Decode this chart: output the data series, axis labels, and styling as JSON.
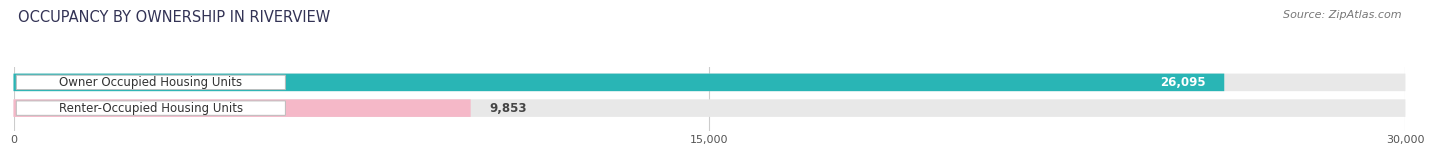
{
  "title": "OCCUPANCY BY OWNERSHIP IN RIVERVIEW",
  "source": "Source: ZipAtlas.com",
  "categories": [
    "Owner Occupied Housing Units",
    "Renter-Occupied Housing Units"
  ],
  "values": [
    26095,
    9853
  ],
  "bar_colors": [
    "#29b5b5",
    "#f5b8c8"
  ],
  "xlim": [
    0,
    30000
  ],
  "xticks": [
    0,
    15000,
    30000
  ],
  "xtick_labels": [
    "0",
    "15,000",
    "30,000"
  ],
  "value_labels": [
    "26,095",
    "9,853"
  ],
  "background_color": "#ffffff",
  "bar_background": "#e8e8e8",
  "title_fontsize": 10.5,
  "bar_label_fontsize": 8.5,
  "value_fontsize": 8.5,
  "tick_fontsize": 8,
  "source_fontsize": 8
}
